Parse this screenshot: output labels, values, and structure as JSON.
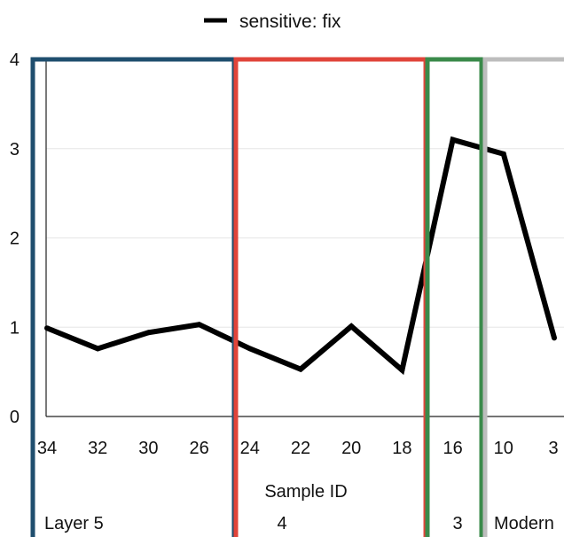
{
  "chart_data": {
    "type": "line",
    "x_categories": [
      "34",
      "32",
      "30",
      "26",
      "24",
      "22",
      "20",
      "18",
      "16",
      "10",
      "3"
    ],
    "series": [
      {
        "name": "sensitive: fix",
        "color": "#000000",
        "values": [
          0.99,
          0.76,
          0.94,
          1.03,
          0.76,
          0.53,
          1.01,
          0.52,
          3.1,
          2.94,
          0.88
        ]
      }
    ],
    "ylim": [
      0,
      4
    ],
    "yticks": [
      "0",
      "1",
      "2",
      "3",
      "4"
    ],
    "xlabel": "Sample ID",
    "ylabel": "",
    "grid": true,
    "legend_position": "top-center",
    "regions": [
      {
        "label": "Layer 5",
        "from": 0,
        "to": 3,
        "color": "#1f4e6e"
      },
      {
        "label": "4",
        "from": 4,
        "to": 7,
        "color": "#e0443a"
      },
      {
        "label": "3",
        "from": 8,
        "to": 8,
        "color": "#3a8a4a"
      },
      {
        "label": "Modern",
        "from": 9,
        "to": 10,
        "color": "#bdbdbd"
      }
    ]
  }
}
